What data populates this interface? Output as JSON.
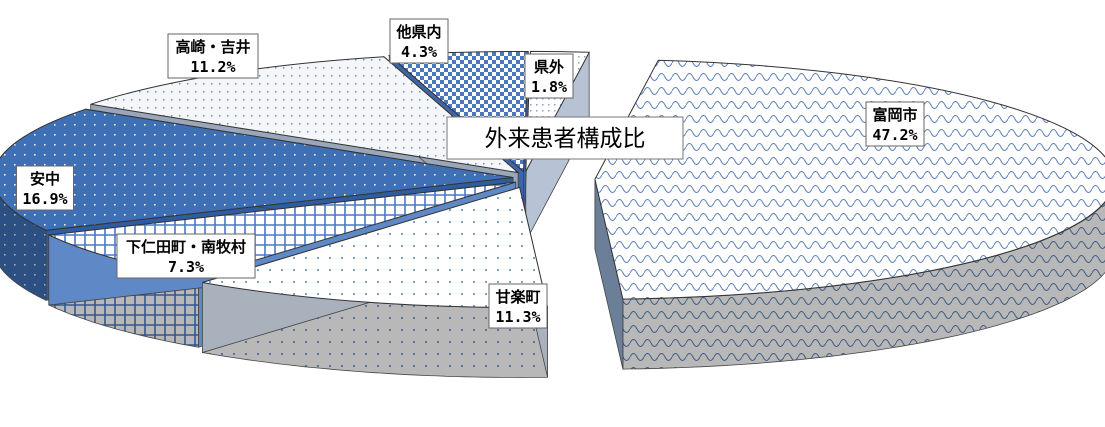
{
  "chart_data": {
    "type": "pie",
    "title": "外来患者構成比",
    "slices": [
      {
        "name": "富岡市",
        "value": 47.2,
        "label": "47.2%",
        "color": "#cfe0f2",
        "style": "exploded"
      },
      {
        "name": "甘楽町",
        "value": 11.3,
        "label": "11.3%",
        "color": "#d8dde6"
      },
      {
        "name": "下仁田町・南牧村",
        "value": 7.3,
        "label": "7.3%",
        "color": "#7ea4d8"
      },
      {
        "name": "安中",
        "value": 16.9,
        "label": "16.9%",
        "color": "#3f6fb5"
      },
      {
        "name": "高崎・吉井",
        "value": 11.2,
        "label": "11.2%",
        "color": "#e7edf6"
      },
      {
        "name": "他県内",
        "value": 4.3,
        "label": "4.3%",
        "color": "#4c78c2"
      },
      {
        "name": "県外",
        "value": 1.8,
        "label": "1.8%",
        "color": "#eef2f8"
      }
    ]
  }
}
